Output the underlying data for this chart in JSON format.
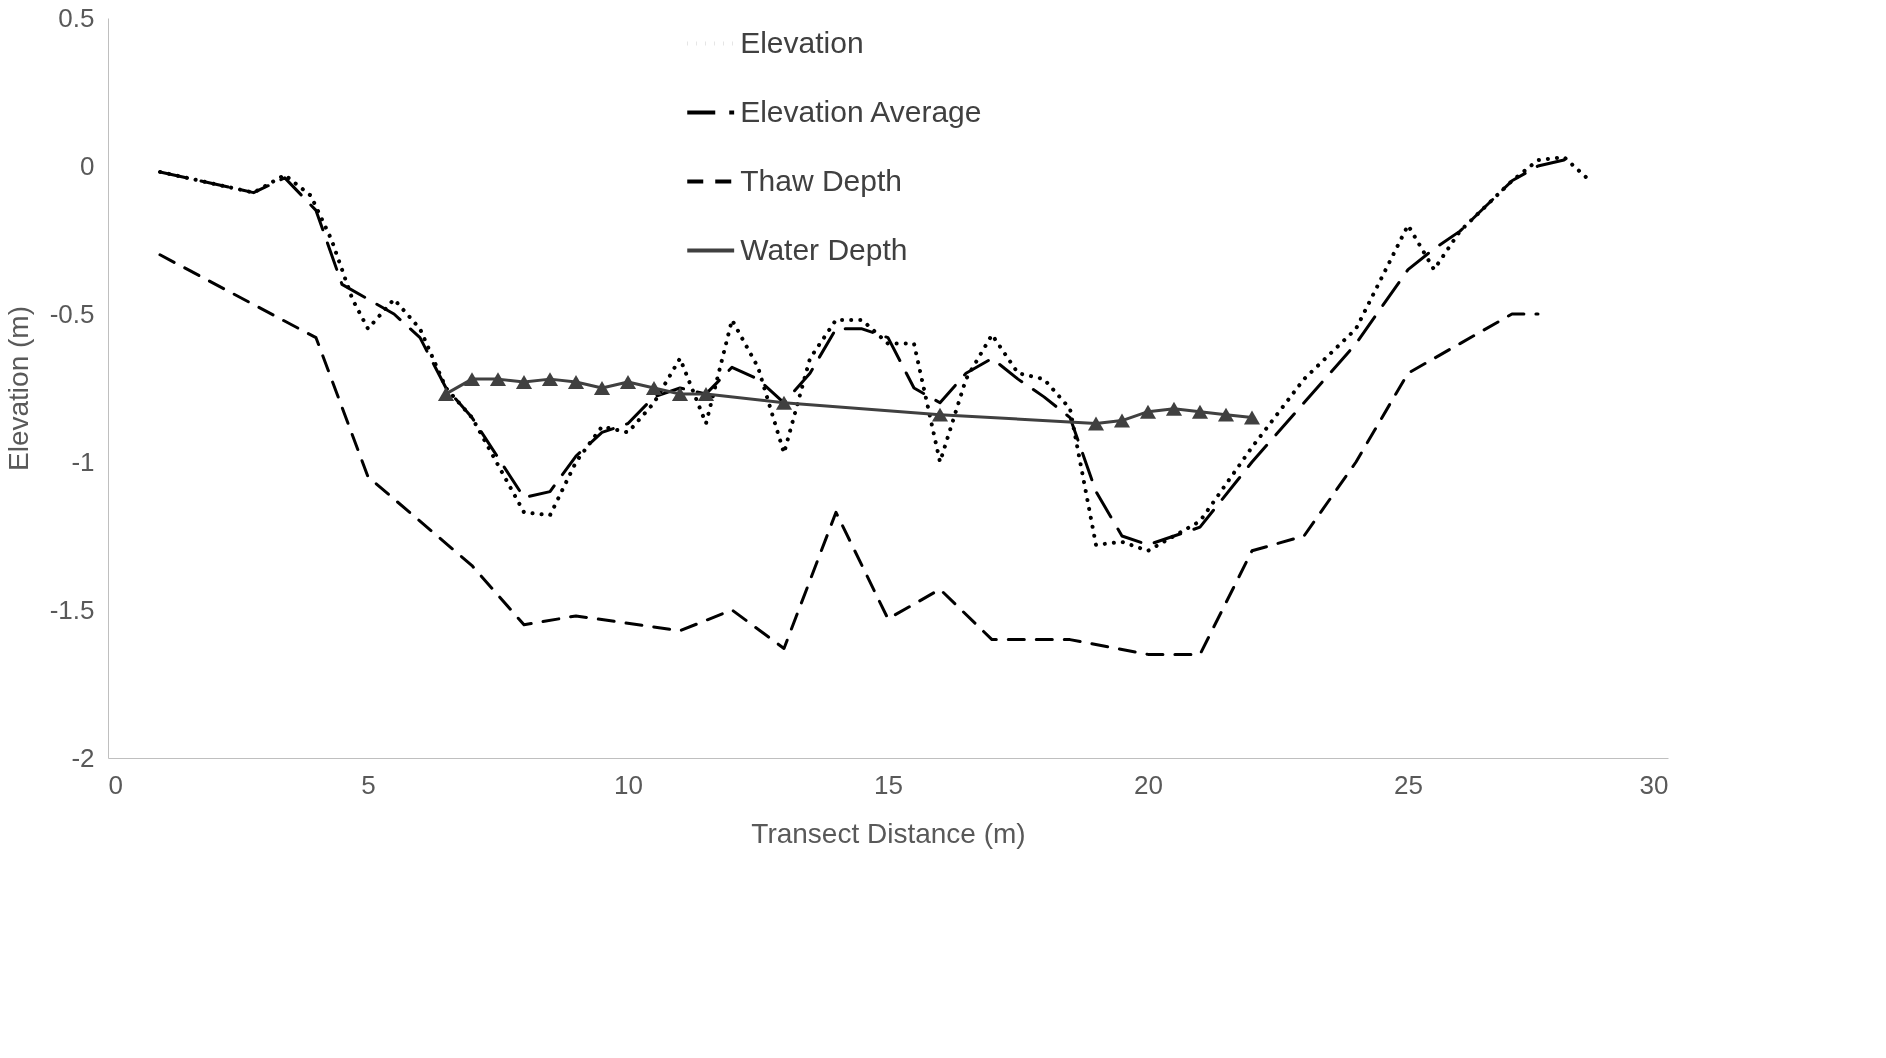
{
  "chart_data": {
    "type": "line",
    "xlabel": "Transect Distance (m)",
    "ylabel": "Elevation (m)",
    "xlim": [
      0,
      30
    ],
    "xticks": [
      0,
      5,
      10,
      15,
      20,
      25,
      30
    ],
    "ylim": [
      -2,
      0.5
    ],
    "yticks": [
      -2,
      -1.5,
      -1,
      -0.5,
      0,
      0.5
    ],
    "grid": false,
    "legend": "top",
    "series": [
      {
        "name": "Elevation",
        "color": "#000000",
        "line_style": "dotted",
        "marker": "none",
        "x": [
          1,
          2.8,
          3.4,
          3.9,
          4.3,
          4.7,
          5,
          5.5,
          6,
          6.5,
          7,
          8,
          8.5,
          9,
          9.5,
          10,
          10.5,
          11,
          11.5,
          12,
          12.5,
          13,
          13.5,
          14,
          14.5,
          15,
          15.5,
          16,
          16.5,
          17,
          17.5,
          18,
          18.5,
          19,
          19.5,
          20,
          20.5,
          21,
          22,
          23,
          24,
          25,
          25.5,
          26,
          27,
          27.5,
          28,
          28.5
        ],
        "values": [
          -0.02,
          -0.09,
          -0.03,
          -0.1,
          -0.25,
          -0.45,
          -0.55,
          -0.45,
          -0.55,
          -0.75,
          -0.85,
          -1.17,
          -1.18,
          -1.0,
          -0.88,
          -0.9,
          -0.8,
          -0.65,
          -0.87,
          -0.52,
          -0.68,
          -0.97,
          -0.65,
          -0.52,
          -0.52,
          -0.6,
          -0.6,
          -1.0,
          -0.72,
          -0.57,
          -0.7,
          -0.72,
          -0.82,
          -1.28,
          -1.27,
          -1.3,
          -1.25,
          -1.2,
          -0.95,
          -0.72,
          -0.55,
          -0.2,
          -0.35,
          -0.22,
          -0.05,
          0.02,
          0.03,
          -0.05
        ]
      },
      {
        "name": "Elevation Average",
        "color": "#000000",
        "line_style": "dashed",
        "marker": "none",
        "x": [
          1,
          2.8,
          3.4,
          4,
          4.5,
          5,
          5.5,
          6,
          6.5,
          7,
          8,
          8.5,
          9,
          9.5,
          10,
          10.5,
          11,
          11.5,
          12,
          12.5,
          13,
          13.5,
          14,
          14.5,
          15,
          15.5,
          16,
          16.5,
          17,
          17.5,
          18,
          18.5,
          19,
          19.5,
          20,
          21,
          22,
          23,
          24,
          25,
          25.5,
          26,
          27,
          27.5,
          28
        ],
        "values": [
          -0.02,
          -0.09,
          -0.04,
          -0.15,
          -0.4,
          -0.45,
          -0.5,
          -0.58,
          -0.75,
          -0.85,
          -1.12,
          -1.1,
          -0.98,
          -0.9,
          -0.87,
          -0.78,
          -0.75,
          -0.77,
          -0.68,
          -0.72,
          -0.8,
          -0.7,
          -0.55,
          -0.55,
          -0.58,
          -0.75,
          -0.8,
          -0.7,
          -0.65,
          -0.72,
          -0.78,
          -0.85,
          -1.1,
          -1.25,
          -1.28,
          -1.22,
          -1.0,
          -0.8,
          -0.6,
          -0.35,
          -0.28,
          -0.22,
          -0.05,
          0.0,
          0.02
        ]
      },
      {
        "name": "Thaw Depth",
        "color": "#000000",
        "line_style": "dashed",
        "marker": "none",
        "x": [
          1,
          4,
          5,
          7,
          8,
          9,
          11,
          12,
          13,
          14,
          15,
          16,
          17,
          18.5,
          20,
          21,
          22,
          23,
          24,
          25,
          26,
          27,
          27.5
        ],
        "values": [
          -0.3,
          -0.58,
          -1.05,
          -1.35,
          -1.55,
          -1.52,
          -1.57,
          -1.5,
          -1.63,
          -1.17,
          -1.53,
          -1.43,
          -1.6,
          -1.6,
          -1.65,
          -1.65,
          -1.3,
          -1.25,
          -1.0,
          -0.7,
          -0.6,
          -0.5,
          -0.5
        ]
      },
      {
        "name": "Water Depth",
        "color": "#404040",
        "line_style": "solid",
        "marker": "triangle",
        "x": [
          6.5,
          7,
          7.5,
          8,
          8.5,
          9,
          9.5,
          10,
          10.5,
          11,
          11.5,
          13,
          16,
          19,
          19.5,
          20,
          20.5,
          21,
          21.5,
          22
        ],
        "values": [
          -0.77,
          -0.72,
          -0.72,
          -0.73,
          -0.72,
          -0.73,
          -0.75,
          -0.73,
          -0.75,
          -0.77,
          -0.77,
          -0.8,
          -0.84,
          -0.87,
          -0.86,
          -0.83,
          -0.82,
          -0.83,
          -0.84,
          -0.85
        ]
      }
    ]
  }
}
